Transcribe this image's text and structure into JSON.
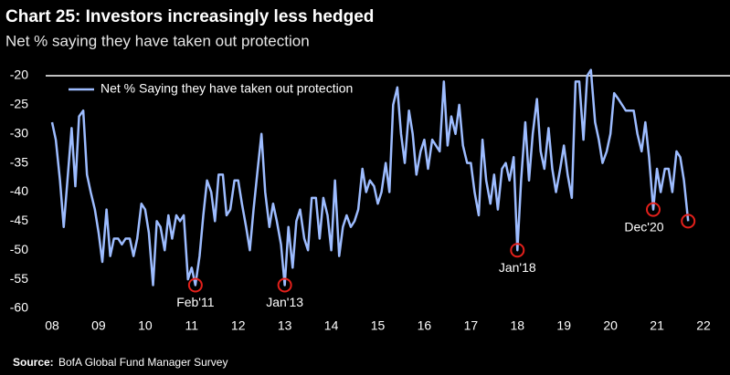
{
  "chart_data": {
    "type": "line",
    "title": "Chart 25: Investors increasingly less hedged",
    "subtitle": "Net % saying they have taken out protection",
    "source_label": "Source:",
    "source": "BofA Global Fund Manager Survey",
    "x": [
      2008.0,
      2008.08,
      2008.17,
      2008.25,
      2008.33,
      2008.42,
      2008.5,
      2008.58,
      2008.67,
      2008.75,
      2008.83,
      2008.92,
      2009.0,
      2009.08,
      2009.17,
      2009.25,
      2009.33,
      2009.42,
      2009.5,
      2009.58,
      2009.67,
      2009.75,
      2009.83,
      2009.92,
      2010.0,
      2010.08,
      2010.17,
      2010.25,
      2010.33,
      2010.42,
      2010.5,
      2010.58,
      2010.67,
      2010.75,
      2010.83,
      2010.92,
      2011.0,
      2011.08,
      2011.17,
      2011.25,
      2011.33,
      2011.42,
      2011.5,
      2011.58,
      2011.67,
      2011.75,
      2011.83,
      2011.92,
      2012.0,
      2012.08,
      2012.17,
      2012.25,
      2012.33,
      2012.42,
      2012.5,
      2012.58,
      2012.67,
      2012.75,
      2012.83,
      2012.92,
      2013.0,
      2013.08,
      2013.17,
      2013.25,
      2013.33,
      2013.42,
      2013.5,
      2013.58,
      2013.67,
      2013.75,
      2013.83,
      2013.92,
      2014.0,
      2014.08,
      2014.17,
      2014.25,
      2014.33,
      2014.42,
      2014.5,
      2014.58,
      2014.67,
      2014.75,
      2014.83,
      2014.92,
      2015.0,
      2015.08,
      2015.17,
      2015.25,
      2015.33,
      2015.42,
      2015.5,
      2015.58,
      2015.67,
      2015.75,
      2015.83,
      2015.92,
      2016.0,
      2016.08,
      2016.17,
      2016.25,
      2016.33,
      2016.42,
      2016.5,
      2016.58,
      2016.67,
      2016.75,
      2016.83,
      2016.92,
      2017.0,
      2017.08,
      2017.17,
      2017.25,
      2017.33,
      2017.42,
      2017.5,
      2017.58,
      2017.67,
      2017.75,
      2017.83,
      2017.92,
      2018.0,
      2018.08,
      2018.17,
      2018.25,
      2018.33,
      2018.42,
      2018.5,
      2018.58,
      2018.67,
      2018.75,
      2018.83,
      2018.92,
      2019.0,
      2019.08,
      2019.17,
      2019.25,
      2019.33,
      2019.42,
      2019.5,
      2019.58,
      2019.67,
      2019.75,
      2019.83,
      2019.92,
      2020.0,
      2020.08,
      2020.17,
      2020.25,
      2020.33,
      2020.42,
      2020.5,
      2020.58,
      2020.67,
      2020.75,
      2020.83,
      2020.92,
      2021.0,
      2021.08,
      2021.17,
      2021.25,
      2021.33,
      2021.42,
      2021.5,
      2021.58,
      2021.67
    ],
    "series": [
      {
        "name": "Net % Saying they have taken out protection",
        "color": "#9dbcff",
        "values": [
          -28,
          -31,
          -38,
          -46,
          -38,
          -29,
          -39,
          -27,
          -26,
          -37,
          -40,
          -43,
          -47,
          -52,
          -43,
          -51,
          -48,
          -48,
          -49,
          -48,
          -48,
          -51,
          -48,
          -42,
          -43,
          -47,
          -56,
          -45,
          -46,
          -50,
          -44,
          -48,
          -44,
          -45,
          -44,
          -55,
          -53,
          -56,
          -51,
          -44,
          -38,
          -40,
          -45,
          -37,
          -37,
          -44,
          -43,
          -38,
          -38,
          -42,
          -46,
          -50,
          -43,
          -36,
          -30,
          -40,
          -46,
          -42,
          -45,
          -49,
          -56,
          -46,
          -53,
          -45,
          -43,
          -48,
          -50,
          -41,
          -41,
          -48,
          -41,
          -44,
          -50,
          -38,
          -51,
          -46,
          -44,
          -46,
          -45,
          -43,
          -36,
          -40,
          -38,
          -39,
          -42,
          -40,
          -35,
          -40,
          -25,
          -22,
          -30,
          -35,
          -26,
          -30,
          -37,
          -33,
          -31,
          -36,
          -31,
          -32,
          -33,
          -21,
          -32,
          -27,
          -30,
          -25,
          -32,
          -35,
          -35,
          -40,
          -44,
          -31,
          -38,
          -42,
          -37,
          -43,
          -36,
          -35,
          -38,
          -34,
          -50,
          -38,
          -28,
          -38,
          -30,
          -24,
          -33,
          -36,
          -29,
          -36,
          -40,
          -36,
          -32,
          -37,
          -41,
          -21,
          -21,
          -31,
          -20,
          -19,
          -28,
          -31,
          -35,
          -33,
          -30,
          -23,
          -24,
          -25,
          -26,
          -26,
          -26,
          -30,
          -33,
          -28,
          -34,
          -43,
          -36,
          -40,
          -36,
          -36,
          -40,
          -33,
          -34,
          -38,
          -45
        ]
      }
    ],
    "annotations": [
      {
        "text": "Feb'11",
        "x": 2011.08,
        "y": -56
      },
      {
        "text": "Jan'13",
        "x": 2013.0,
        "y": -56
      },
      {
        "text": "Jan'18",
        "x": 2018.0,
        "y": -50
      },
      {
        "text": "Dec'20",
        "x": 2020.92,
        "y": -43
      }
    ],
    "highlight_color": "#e3201b",
    "xlim": [
      2008,
      2022
    ],
    "xticks": [
      {
        "value": 2008,
        "label": "08"
      },
      {
        "value": 2009,
        "label": "09"
      },
      {
        "value": 2010,
        "label": "10"
      },
      {
        "value": 2011,
        "label": "11"
      },
      {
        "value": 2012,
        "label": "12"
      },
      {
        "value": 2013,
        "label": "13"
      },
      {
        "value": 2014,
        "label": "14"
      },
      {
        "value": 2015,
        "label": "15"
      },
      {
        "value": 2016,
        "label": "16"
      },
      {
        "value": 2017,
        "label": "17"
      },
      {
        "value": 2018,
        "label": "18"
      },
      {
        "value": 2019,
        "label": "19"
      },
      {
        "value": 2020,
        "label": "20"
      },
      {
        "value": 2021,
        "label": "21"
      },
      {
        "value": 2022,
        "label": "22"
      }
    ],
    "ylim": [
      -60,
      -20
    ],
    "yticks": [
      -20,
      -25,
      -30,
      -35,
      -40,
      -45,
      -50,
      -55,
      -60
    ],
    "legend": "top-left",
    "grid": false
  }
}
